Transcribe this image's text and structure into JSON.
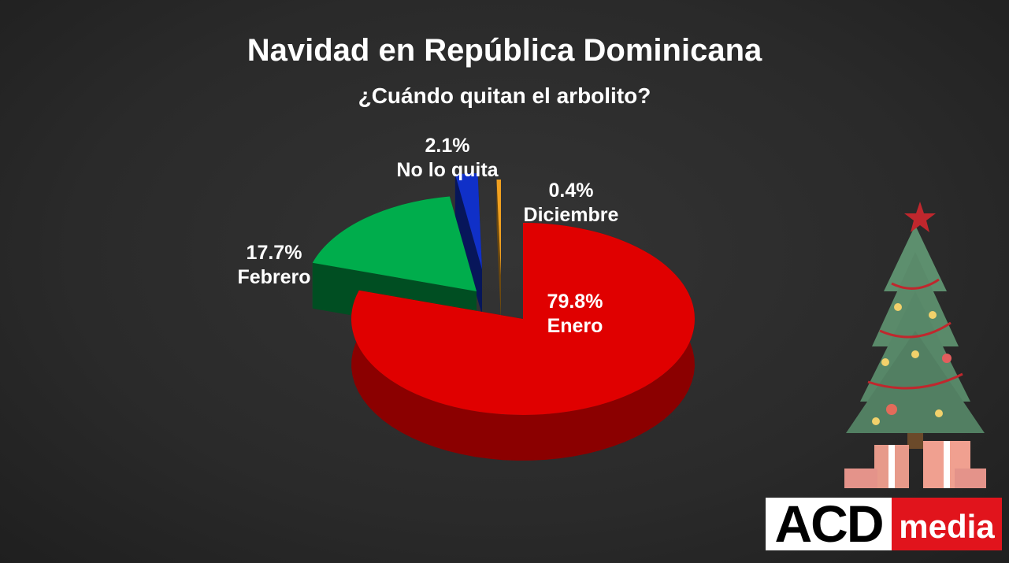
{
  "chart_data": {
    "type": "pie",
    "title": "Navidad en República Dominicana",
    "subtitle": "¿Cuándo quitan el arbolito?",
    "slices": [
      {
        "label": "Enero",
        "value": 79.8,
        "value_label": "79.8%",
        "color": "#e00000"
      },
      {
        "label": "Febrero",
        "value": 17.7,
        "value_label": "17.7%",
        "color": "#00ad4c"
      },
      {
        "label": "No lo quita",
        "value": 2.1,
        "value_label": "2.1%",
        "color": "#1030c8"
      },
      {
        "label": "Diciembre",
        "value": 0.4,
        "value_label": "0.4%",
        "color": "#f0a020"
      }
    ]
  },
  "brand": {
    "left": "ACD",
    "right": "media",
    "accent": "#e1141c"
  }
}
